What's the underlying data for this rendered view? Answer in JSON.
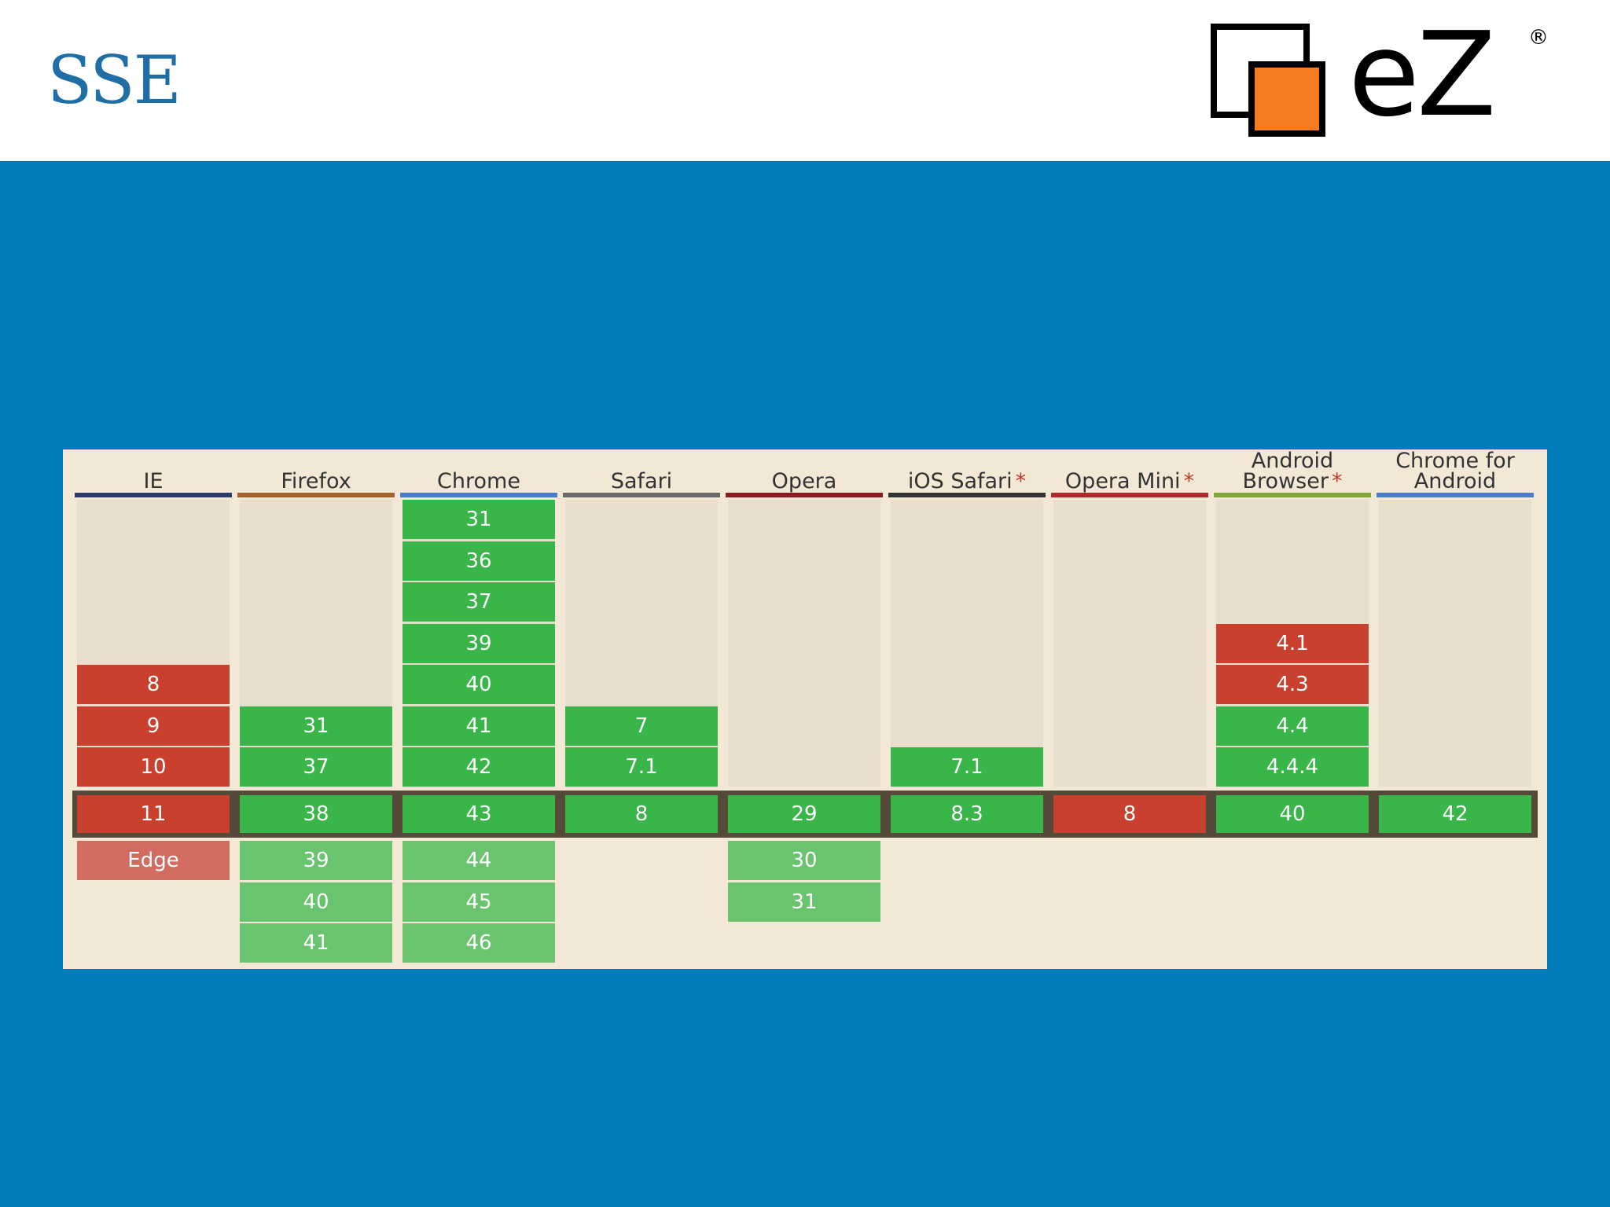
{
  "header": {
    "title": "SSE"
  },
  "logo": {
    "text": "eZ",
    "registered": "®",
    "colors": {
      "orange": "#f47c20",
      "black": "#000000"
    }
  },
  "colors": {
    "slide_bg": "#007cb6",
    "table_bg": "#f3e7d5",
    "unsupported": "#c9402f",
    "supported": "#39b54a",
    "future_supported": "#6ac46f",
    "partial_future": "#d26c60"
  },
  "browsers": [
    {
      "name": "IE",
      "star": "",
      "bar": "#2a3b6b",
      "past": [
        {
          "v": "8",
          "s": "red"
        },
        {
          "v": "9",
          "s": "red"
        },
        {
          "v": "10",
          "s": "red"
        }
      ],
      "current": {
        "v": "11",
        "s": "red"
      },
      "future": [
        {
          "v": "Edge",
          "s": "pink"
        }
      ]
    },
    {
      "name": "Firefox",
      "star": "",
      "bar": "#a4622c",
      "past": [
        {
          "v": "31",
          "s": "green"
        },
        {
          "v": "37",
          "s": "green"
        }
      ],
      "current": {
        "v": "38",
        "s": "green"
      },
      "future": [
        {
          "v": "39",
          "s": "lgreen"
        },
        {
          "v": "40",
          "s": "lgreen"
        },
        {
          "v": "41",
          "s": "lgreen"
        }
      ]
    },
    {
      "name": "Chrome",
      "star": "",
      "bar": "#4a7bc6",
      "past": [
        {
          "v": "31",
          "s": "green"
        },
        {
          "v": "36",
          "s": "green"
        },
        {
          "v": "37",
          "s": "green"
        },
        {
          "v": "39",
          "s": "green"
        },
        {
          "v": "40",
          "s": "green"
        },
        {
          "v": "41",
          "s": "green"
        },
        {
          "v": "42",
          "s": "green"
        }
      ],
      "current": {
        "v": "43",
        "s": "green"
      },
      "future": [
        {
          "v": "44",
          "s": "lgreen"
        },
        {
          "v": "45",
          "s": "lgreen"
        },
        {
          "v": "46",
          "s": "lgreen"
        }
      ]
    },
    {
      "name": "Safari",
      "star": "",
      "bar": "#6a6a6a",
      "past": [
        {
          "v": "7",
          "s": "green"
        },
        {
          "v": "7.1",
          "s": "green"
        }
      ],
      "current": {
        "v": "8",
        "s": "green"
      },
      "future": []
    },
    {
      "name": "Opera",
      "star": "",
      "bar": "#8b1c22",
      "past": [],
      "current": {
        "v": "29",
        "s": "green"
      },
      "future": [
        {
          "v": "30",
          "s": "lgreen"
        },
        {
          "v": "31",
          "s": "lgreen"
        }
      ]
    },
    {
      "name": "iOS Safari",
      "star": "*",
      "bar": "#333333",
      "past": [
        {
          "v": "7.1",
          "s": "green"
        }
      ],
      "current": {
        "v": "8.3",
        "s": "green"
      },
      "future": []
    },
    {
      "name": "Opera Mini",
      "star": "*",
      "bar": "#b0272d",
      "past": [],
      "current": {
        "v": "8",
        "s": "red"
      },
      "future": []
    },
    {
      "name": "Android Browser",
      "star": "*",
      "bar": "#7fa53b",
      "past": [
        {
          "v": "4.1",
          "s": "red"
        },
        {
          "v": "4.3",
          "s": "red"
        },
        {
          "v": "4.4",
          "s": "green"
        },
        {
          "v": "4.4.4",
          "s": "green"
        }
      ],
      "current": {
        "v": "40",
        "s": "green"
      },
      "future": []
    },
    {
      "name": "Chrome for Android",
      "star": "",
      "bar": "#4a7bc6",
      "past": [],
      "current": {
        "v": "42",
        "s": "green"
      },
      "future": []
    }
  ]
}
